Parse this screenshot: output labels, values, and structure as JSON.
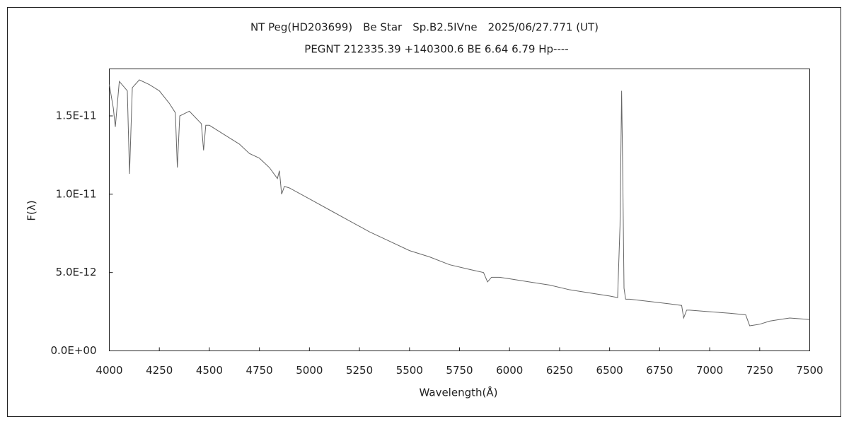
{
  "chart_data": {
    "type": "line",
    "title": "NT Peg(HD203699)　Be Star　Sp.B2.5IVne　2025/06/27.771 (UT)",
    "subtitle": "PEGNT 212335.39 +140300.6 BE 6.64 6.79 Hp----",
    "x_label": "Wavelength(Å)",
    "y_label": "F(λ)",
    "xlim": [
      4000,
      7500
    ],
    "xticks": [
      4000,
      4250,
      4500,
      4750,
      5000,
      5250,
      5500,
      5750,
      6000,
      6250,
      6500,
      6750,
      7000,
      7250,
      7500
    ],
    "ylim": [
      0,
      1.8e-11
    ],
    "yticks": [
      {
        "value": 0,
        "label": "0.0E+00"
      },
      {
        "value": 5e-12,
        "label": "5.0E-12"
      },
      {
        "value": 1e-11,
        "label": "1.0E-11"
      },
      {
        "value": 1.5e-11,
        "label": "1.5E-11"
      }
    ],
    "x": [
      4000,
      4020,
      4030,
      4050,
      4090,
      4101,
      4115,
      4150,
      4200,
      4250,
      4300,
      4330,
      4340,
      4352,
      4400,
      4460,
      4471,
      4482,
      4500,
      4550,
      4600,
      4650,
      4700,
      4750,
      4800,
      4840,
      4850,
      4861,
      4875,
      4900,
      5000,
      5100,
      5200,
      5300,
      5400,
      5500,
      5600,
      5700,
      5800,
      5870,
      5890,
      5910,
      5950,
      6000,
      6100,
      6200,
      6300,
      6400,
      6500,
      6540,
      6552,
      6560,
      6565,
      6572,
      6580,
      6600,
      6700,
      6800,
      6860,
      6870,
      6885,
      6900,
      7000,
      7100,
      7180,
      7200,
      7250,
      7300,
      7350,
      7400,
      7500
    ],
    "series": [
      {
        "name": "F(λ)",
        "color": "#666666",
        "values": [
          1.7e-11,
          1.55e-11,
          1.43e-11,
          1.72e-11,
          1.66e-11,
          1.13e-11,
          1.68e-11,
          1.73e-11,
          1.7e-11,
          1.66e-11,
          1.58e-11,
          1.52e-11,
          1.17e-11,
          1.5e-11,
          1.53e-11,
          1.45e-11,
          1.28e-11,
          1.44e-11,
          1.44e-11,
          1.4e-11,
          1.36e-11,
          1.32e-11,
          1.26e-11,
          1.23e-11,
          1.17e-11,
          1.1e-11,
          1.15e-11,
          1e-11,
          1.05e-11,
          1.04e-11,
          9.7e-12,
          9e-12,
          8.3e-12,
          7.6e-12,
          7e-12,
          6.4e-12,
          6e-12,
          5.5e-12,
          5.2e-12,
          5e-12,
          4.4e-12,
          4.7e-12,
          4.7e-12,
          4.6e-12,
          4.4e-12,
          4.2e-12,
          3.9e-12,
          3.7e-12,
          3.5e-12,
          3.4e-12,
          8e-12,
          1.66e-11,
          1.2e-11,
          4e-12,
          3.3e-12,
          3.3e-12,
          3.15e-12,
          3e-12,
          2.9e-12,
          2.1e-12,
          2.6e-12,
          2.6e-12,
          2.5e-12,
          2.4e-12,
          2.3e-12,
          1.6e-12,
          1.7e-12,
          1.9e-12,
          2e-12,
          2.1e-12,
          2e-12
        ]
      }
    ]
  }
}
